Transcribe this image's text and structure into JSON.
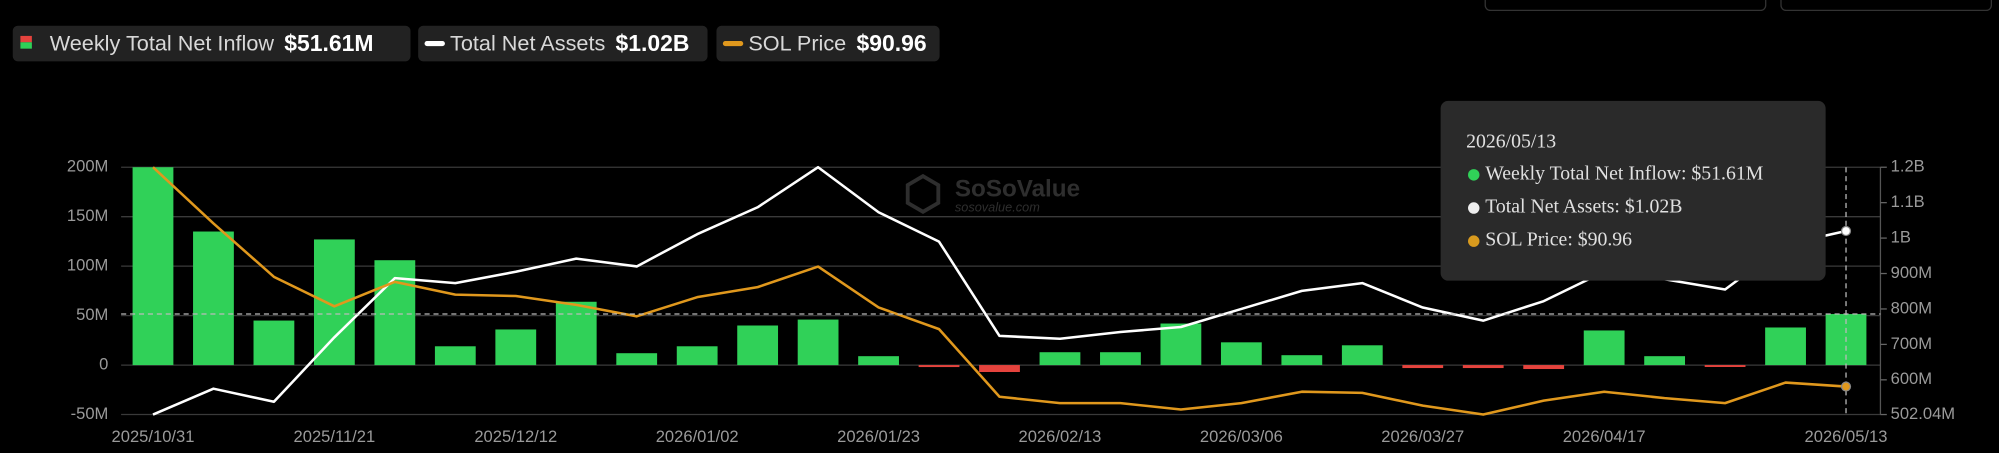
{
  "chart_data": {
    "type": "bar",
    "categories": [
      "2025/10/31",
      null,
      null,
      "2025/11/21",
      null,
      null,
      "2025/12/12",
      null,
      null,
      "2026/01/02",
      null,
      null,
      "2026/01/23",
      null,
      null,
      "2026/02/13",
      null,
      null,
      "2026/03/06",
      null,
      null,
      "2026/03/27",
      null,
      null,
      "2026/04/17",
      null,
      null,
      null,
      "2026/05/13"
    ],
    "series": [
      {
        "name": "Weekly Total Net Inflow",
        "type": "bar",
        "color": "#30d158",
        "negative_color": "#e5433d",
        "values": [
          200000000,
          135000000,
          45000000,
          127000000,
          106000000,
          19000000,
          36000000,
          64000000,
          12000000,
          19000000,
          40000000,
          46000000,
          9000000,
          -2000000,
          -7000000,
          13000000,
          13000000,
          42000000,
          23000000,
          10000000,
          20000000,
          -3000000,
          -3000000,
          -4000000,
          35000000,
          9000000,
          -1000000,
          38000000,
          51610000
        ]
      },
      {
        "name": "Total Net Assets",
        "type": "line",
        "axis": "y2",
        "color": "#ffffff",
        "values": [
          502040000,
          575000000,
          538000000,
          720000000,
          887000000,
          873000000,
          905000000,
          942000000,
          920000000,
          1011000000,
          1087000000,
          1200000000,
          1073000000,
          990000000,
          724000000,
          716000000,
          735000000,
          749000000,
          800000000,
          851000000,
          873000000,
          804000000,
          767000000,
          822000000,
          905000000,
          884000000,
          855000000,
          982000000,
          1020000000
        ]
      },
      {
        "name": "SOL Price",
        "type": "line",
        "axis": "y3",
        "color": "#e0981d",
        "values": [
          187,
          162.4,
          139,
          126.1,
          136.8,
          131.2,
          130.6,
          126.7,
          121.7,
          130.1,
          134.5,
          143.5,
          125.6,
          116.1,
          86.5,
          83.7,
          83.7,
          80.9,
          83.7,
          88.7,
          88.2,
          82.6,
          78.7,
          84.8,
          88.7,
          85.9,
          83.7,
          92.7,
          90.96
        ]
      }
    ],
    "legend_values": [
      {
        "value": 51610000,
        "label": "$51.61M"
      },
      {
        "value": 1020000000,
        "label": "$1.02B"
      },
      {
        "value": 90.96,
        "label": "$90.96"
      }
    ],
    "ylim": [
      -50000000,
      200000000
    ],
    "yticks": [
      {
        "value": -50000000,
        "label": "-50M"
      },
      0,
      {
        "value": 50000000,
        "label": "50M"
      },
      {
        "value": 100000000,
        "label": "100M"
      },
      {
        "value": 150000000,
        "label": "150M"
      },
      {
        "value": 200000000,
        "label": "200M"
      }
    ],
    "y2lim": [
      502040000,
      1200000000
    ],
    "y2ticks": [
      {
        "value": 502040000,
        "label": "502.04M"
      },
      {
        "value": 600000000,
        "label": "600M"
      },
      {
        "value": 700000000,
        "label": "700M"
      },
      {
        "value": 800000000,
        "label": "800M"
      },
      {
        "value": 900000000,
        "label": "900M"
      },
      {
        "value": 1000000000,
        "label": "1B"
      },
      {
        "value": 1100000000,
        "label": "1.1B"
      },
      {
        "value": 1200000000,
        "label": "1.2B"
      }
    ],
    "y3lim": [
      78.7,
      187
    ],
    "grid": true,
    "tooltip": {
      "date": "2026/05/13",
      "items": [
        "Weekly Total Net Inflow: $51.61M",
        "Total Net Assets: $1.02B",
        "SOL Price: $90.96"
      ]
    },
    "watermark": {
      "title": "SoSoValue",
      "subtitle": "sosovalue.com"
    }
  }
}
